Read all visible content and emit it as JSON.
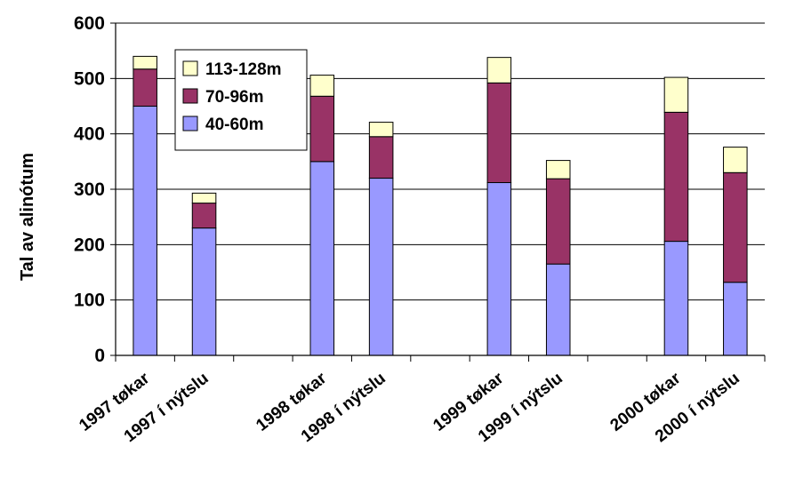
{
  "chart_data": {
    "type": "bar",
    "stacked": true,
    "title": "",
    "xlabel": "",
    "ylabel": "Tal av alinótum",
    "ylim": [
      0,
      600
    ],
    "yticks": [
      0,
      100,
      200,
      300,
      400,
      500,
      600
    ],
    "grid": true,
    "legend_position": "top-left",
    "slots": [
      "1997 tøkar",
      "1997 í nýtslu",
      "",
      "1998 tøkar",
      "1998 í nýtslu",
      "",
      "1999 tøkar",
      "1999 í nýtslu",
      "",
      "2000 tøkar",
      "2000 í nýtslu"
    ],
    "categories": [
      "1997 tøkar",
      "1997 í nýtslu",
      "1998 tøkar",
      "1998 í nýtslu",
      "1999 tøkar",
      "1999 í nýtslu",
      "2000 tøkar",
      "2000 í nýtslu"
    ],
    "series": [
      {
        "name": "40-60m",
        "color": "#9999ff",
        "values": [
          450,
          230,
          350,
          320,
          312,
          165,
          206,
          132
        ]
      },
      {
        "name": "70-96m",
        "color": "#993366",
        "values": [
          67,
          45,
          118,
          75,
          180,
          154,
          233,
          198
        ]
      },
      {
        "name": "113-128m",
        "color": "#ffffcc",
        "values": [
          23,
          18,
          38,
          26,
          46,
          33,
          63,
          46
        ]
      }
    ]
  }
}
